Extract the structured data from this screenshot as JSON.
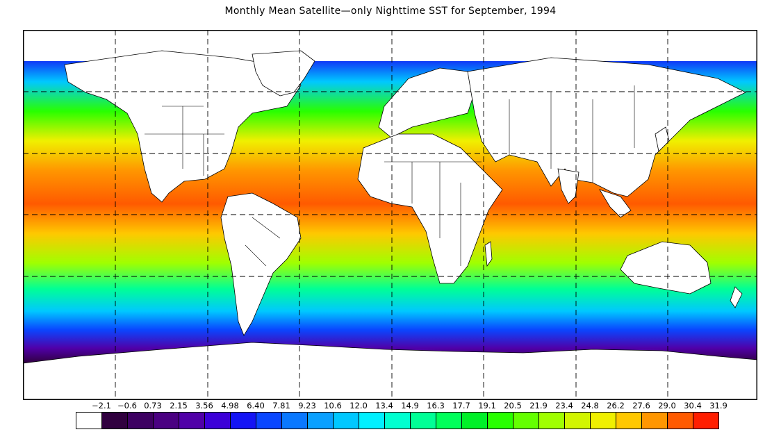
{
  "title": "Monthly Mean Satellite—only Nighttime SST for September, 1994",
  "colorbar": {
    "labels": [
      "−2.1",
      "−0.6",
      "0.73",
      "2.15",
      "3.56",
      "4.98",
      "6.40",
      "7.81",
      "9.23",
      "10.6",
      "12.0",
      "13.4",
      "14.9",
      "16.3",
      "17.7",
      "19.1",
      "20.5",
      "21.9",
      "23.4",
      "24.8",
      "26.2",
      "27.6",
      "29.0",
      "30.4",
      "31.9"
    ],
    "colors": [
      "#ffffff",
      "#30003f",
      "#3d0062",
      "#4a0082",
      "#5000a8",
      "#3c00d8",
      "#1414f5",
      "#0a46ff",
      "#0a78ff",
      "#0aa0ff",
      "#00c8ff",
      "#00f0ff",
      "#00ffd0",
      "#00ff96",
      "#00ff5a",
      "#00f028",
      "#28ff00",
      "#64ff00",
      "#a0ff00",
      "#d2f500",
      "#f0f000",
      "#ffc800",
      "#ff9600",
      "#ff5a00",
      "#ff1e00"
    ]
  },
  "map": {
    "gridlines": "dashed",
    "lat_lines": [
      "60N",
      "30N",
      "EQ",
      "30S"
    ],
    "lon_lines": [
      "135W",
      "90W",
      "45W",
      "0",
      "45E",
      "90E",
      "135E"
    ]
  }
}
